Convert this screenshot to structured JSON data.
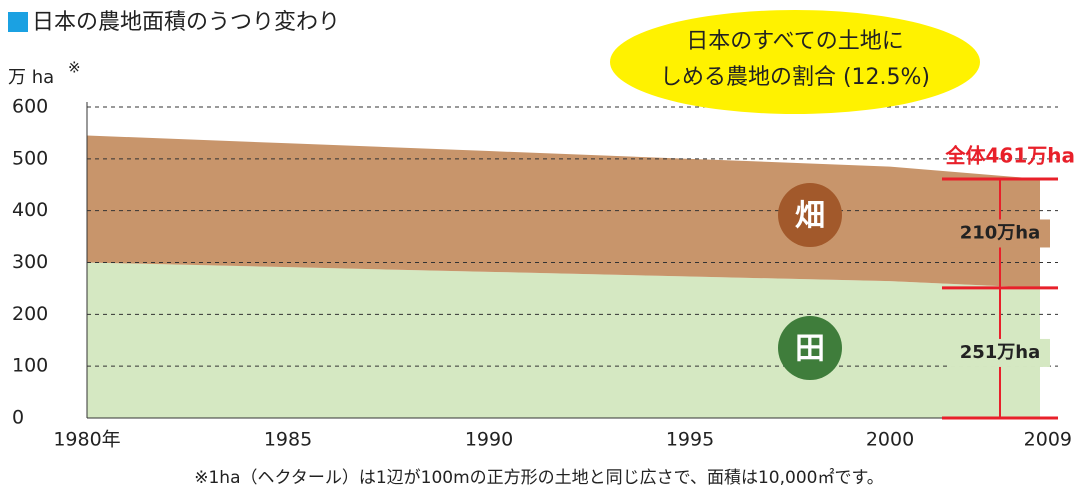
{
  "chart_data": {
    "type": "area",
    "title": "日本の農地面積のうつり変わり",
    "y_label": "万 ha",
    "y_label_note": "※",
    "callout": [
      "日本のすべての土地に",
      "しめる農地の割合 (12.5%)"
    ],
    "total_label": "全体461万ha",
    "footnote": "※1ha（ヘクタール）は1辺が100mの正方形の土地と同じ広さで、面積は10,000㎡です。",
    "categories": [
      "1980年",
      "1985",
      "1990",
      "1995",
      "2000",
      "2009"
    ],
    "series": [
      {
        "name": "田",
        "color": "#d5e8c2",
        "badge_color": "#3f7d3b",
        "values": [
          300,
          291,
          282,
          273,
          264,
          251
        ],
        "value_labels": [
          null,
          null,
          null,
          null,
          null,
          "251万ha"
        ]
      },
      {
        "name": "畑",
        "color": "#c8956b",
        "badge_color": "#a2592b",
        "values": [
          245,
          239,
          233,
          227,
          221,
          210
        ],
        "value_labels": [
          null,
          null,
          null,
          null,
          null,
          "210万ha"
        ]
      }
    ],
    "ylim": [
      0,
      600
    ],
    "yticks": [
      0,
      100,
      200,
      300,
      400,
      500,
      600
    ],
    "grid": true,
    "stacked": true
  }
}
